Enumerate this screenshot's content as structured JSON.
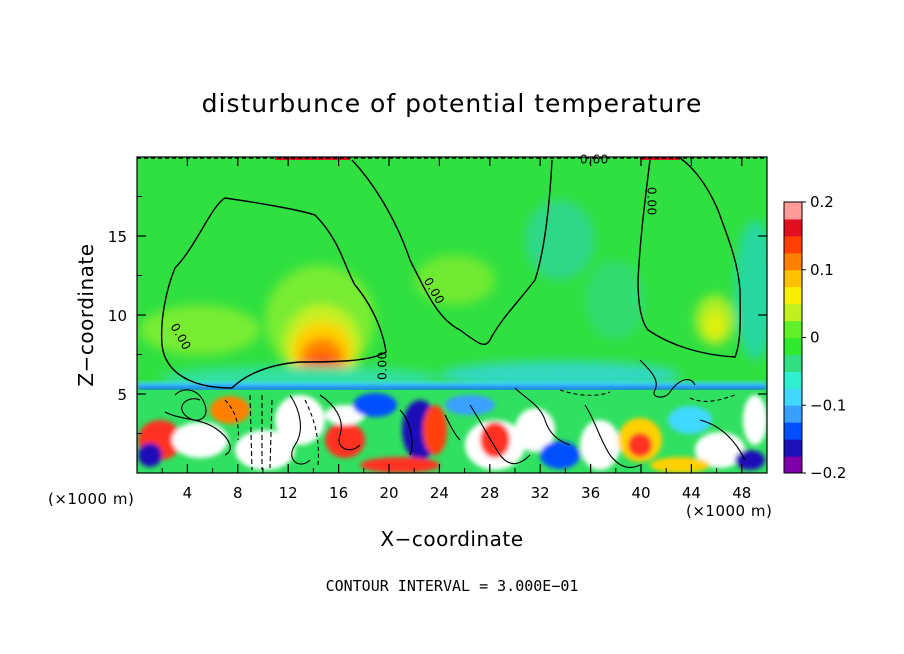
{
  "chart_data": {
    "type": "heatmap",
    "title": "disturbunce of potential temperature",
    "xlabel": "X−coordinate",
    "ylabel": "Z−coordinate",
    "x_unit_left": "(×1000 m)",
    "x_unit_right": "(×1000 m)",
    "xlim": [
      0,
      50
    ],
    "ylim": [
      0,
      20
    ],
    "xticks": [
      4,
      8,
      12,
      16,
      20,
      24,
      28,
      32,
      36,
      40,
      44,
      48
    ],
    "xtick_labels": [
      "4",
      "8",
      "12",
      "16",
      "20",
      "24",
      "28",
      "32",
      "36",
      "40",
      "44",
      "48"
    ],
    "yticks": [
      5,
      10,
      15
    ],
    "ytick_labels": [
      "5",
      "10",
      "15"
    ],
    "colorbar": {
      "min": -0.2,
      "max": 0.2,
      "ticks": [
        0.2,
        0.1,
        0,
        -0.1,
        -0.2
      ],
      "tick_labels": [
        "0.2",
        "0.1",
        "0",
        "−0.1",
        "−0.2"
      ],
      "colors": [
        "#7f00a8",
        "#1c10b8",
        "#0050ff",
        "#3aa0ff",
        "#40d8ff",
        "#30f0d0",
        "#30e080",
        "#30ea30",
        "#60f028",
        "#c0f020",
        "#f8f000",
        "#ffc000",
        "#ff8000",
        "#ff4000",
        "#e01020",
        "#ff9a9a"
      ]
    },
    "contour_labels": [
      {
        "text": "0.00",
        "x": 3.2,
        "z": 8.5,
        "rotate": 60
      },
      {
        "text": "0.00",
        "x": 19.8,
        "z": 6.8,
        "rotate": -90
      },
      {
        "text": "0.00",
        "x": 23.3,
        "z": 11.4,
        "rotate": 60
      },
      {
        "text": "0.60",
        "x": 36.3,
        "z": 19.6,
        "rotate": 0
      },
      {
        "text": "0.00",
        "x": 40.5,
        "z": 17.2,
        "rotate": 90
      }
    ],
    "contour_interval": 0.3,
    "footer": "CONTOUR INTERVAL = 3.000E−01"
  }
}
